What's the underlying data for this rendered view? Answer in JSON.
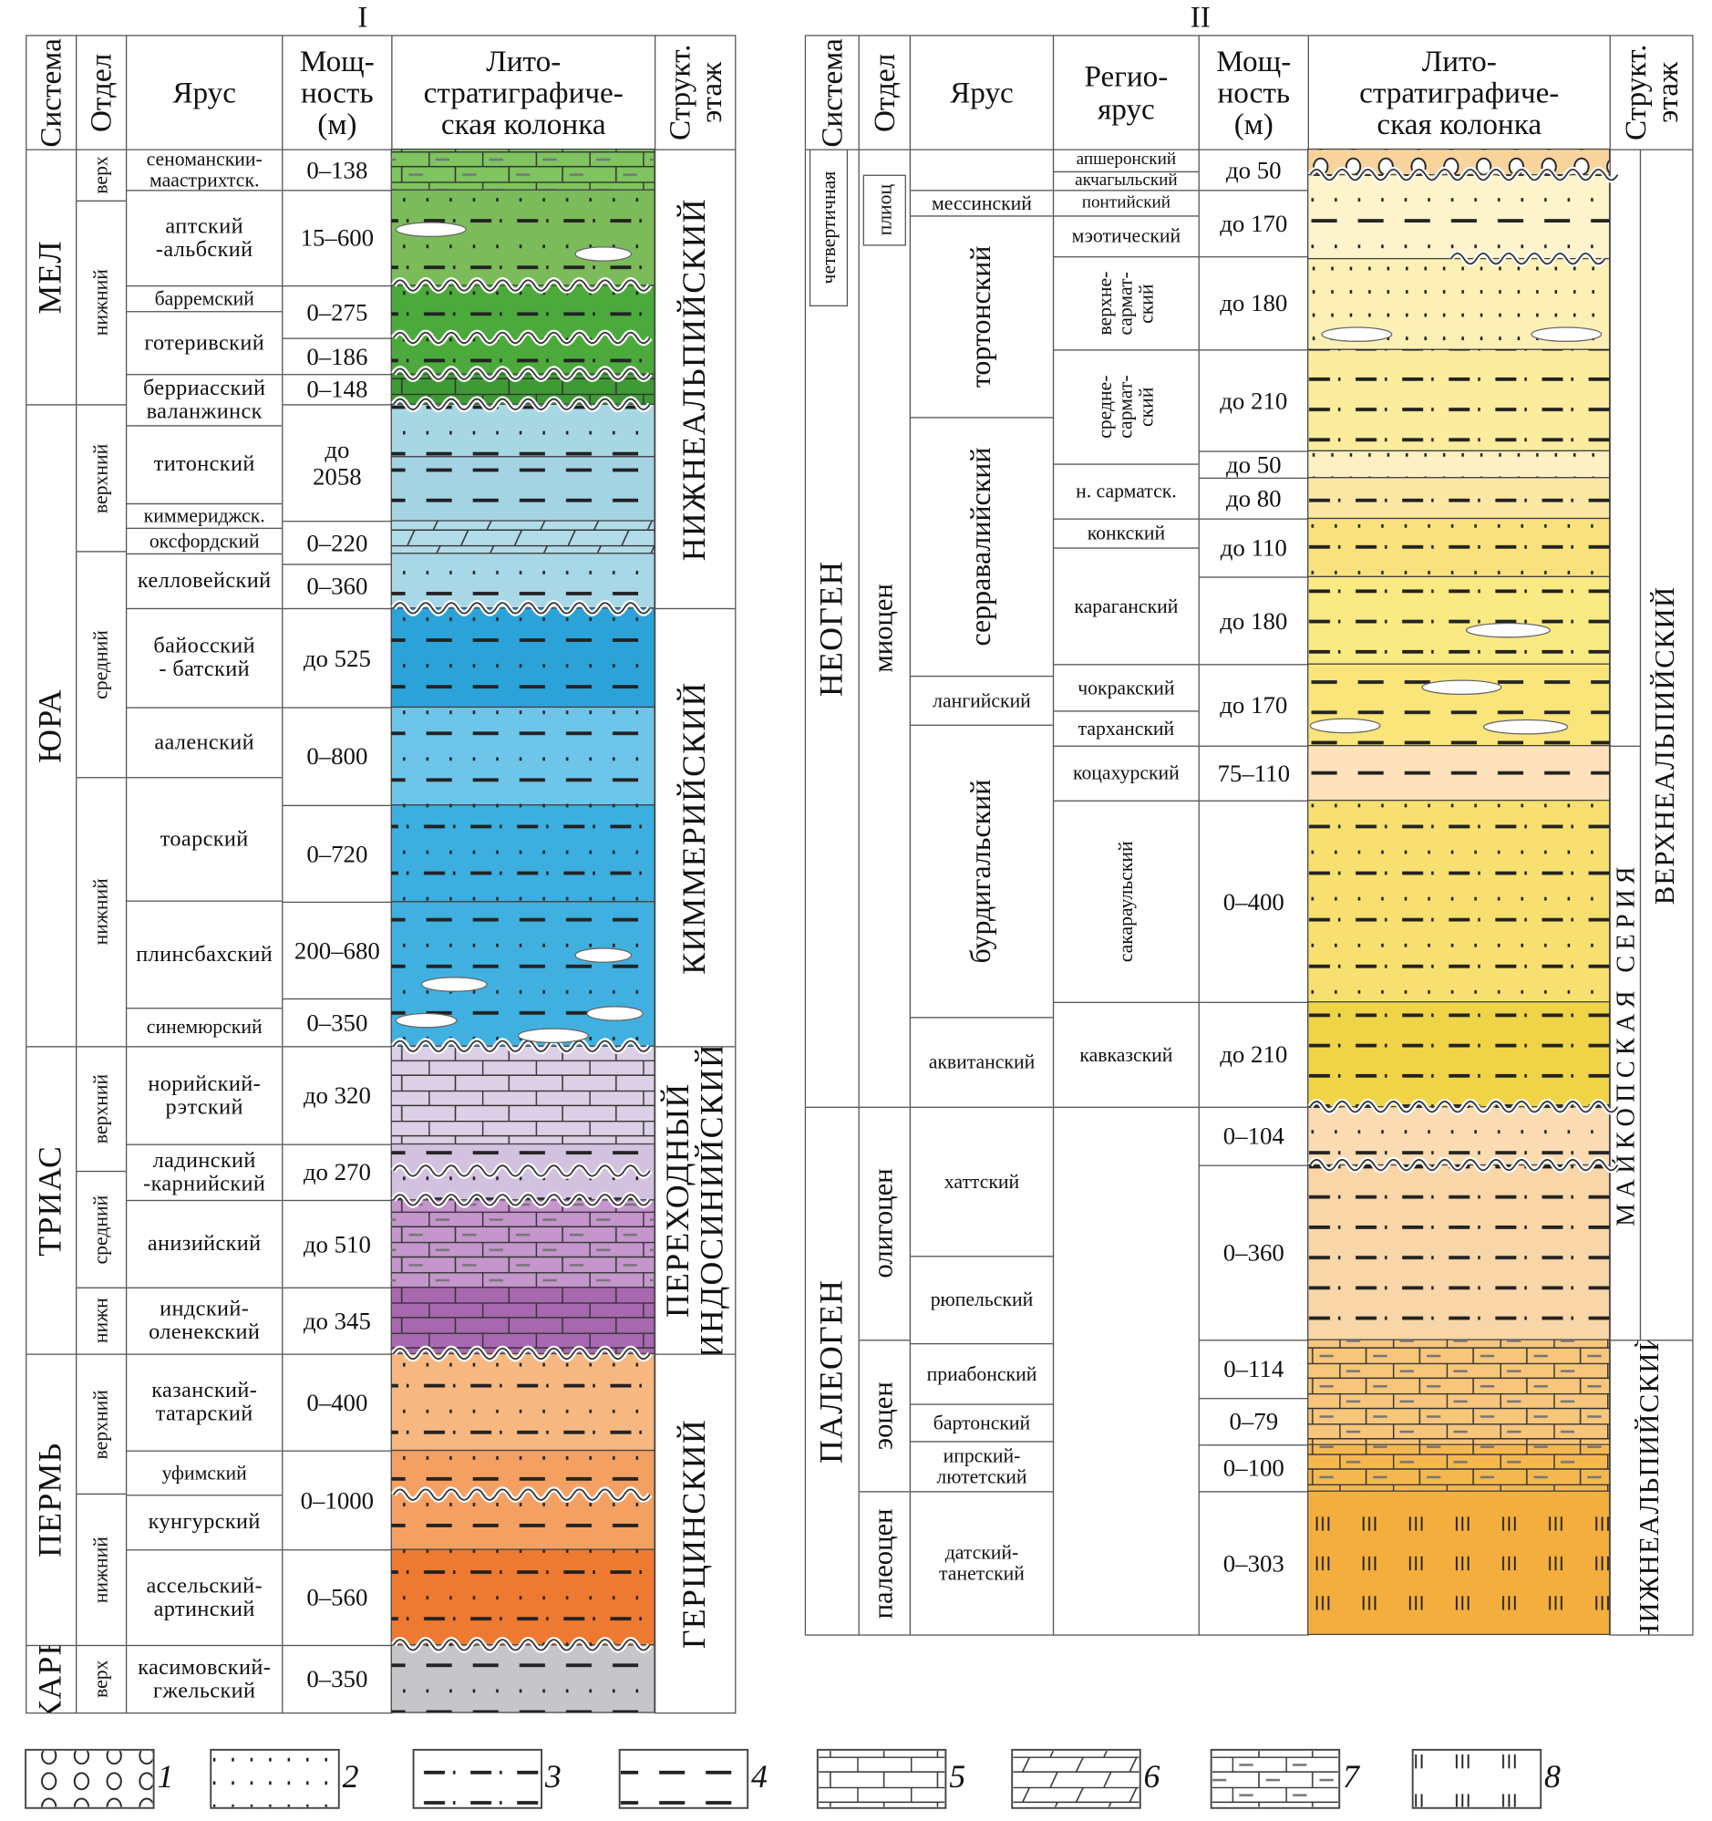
{
  "panels": {
    "left": {
      "label": "I",
      "headers": {
        "system": "Система",
        "series": "Отдел",
        "stage": "Ярус",
        "thickness": "Мощ-\nность\n(м)",
        "column": "Лито-\nстратиграфиче-\nская колонка",
        "structural": "Структ.\nэтаж"
      }
    },
    "right": {
      "label": "II",
      "headers": {
        "system": "Система",
        "series": "Отдел",
        "stage": "Ярус",
        "regional": "Регио-\nярус",
        "thickness": "Мощ-\nность\n(м)",
        "column": "Лито-\nстратиграфиче-\nская колонка",
        "structural": "Структ.\nэтаж"
      }
    }
  },
  "left": {
    "systems": [
      "МЕЛ",
      "ЮРА",
      "ТРИАС",
      "ПЕРМЬ",
      "КАРБ"
    ],
    "series": [
      "верх",
      "нижний",
      "верхний",
      "средний",
      "нижний",
      "верхний",
      "средний",
      "нижн",
      "верхний",
      "нижний",
      "верх"
    ],
    "stages": [
      "сеноманскии-\nмаастрихтск.",
      "аптский\n-альбский",
      "барремский",
      "готеривский",
      "берриасский\nваланжинск",
      "титонский",
      "киммериджск.",
      "оксфордский",
      "келловейский",
      "байосский\n- батский",
      "ааленский",
      "тоарский",
      "плинсбахский",
      "синемюрский",
      "норийский-\nрэтский",
      "ладинский\n-карнийский",
      "анизийский",
      "индский-\nоленекский",
      "казанский-\nтатарский",
      "уфимский",
      "кунгурский",
      "ассельский-\nартинский",
      "касимовский-\nгжельский"
    ],
    "thickness": [
      "0–138",
      "15–600",
      "0–275",
      "0–186",
      "0–148",
      "до\n2058",
      "0–220",
      "0–360",
      "до 525",
      "0–800",
      "0–720",
      "200–680",
      "0–350",
      "до 320",
      "до 270",
      "до 510",
      "до 345",
      "0–400",
      "0–1000",
      "0–560",
      "0–350"
    ],
    "structural": [
      "НИЖНЕАЛЬПИЙСКИЙ",
      "КИММЕРИЙСКИЙ",
      "ПЕРЕХОДНЫЙ\n(ИНДОСИНИЙСКИЙ)",
      "ГЕРЦИНСКИЙ"
    ],
    "lithology": [
      {
        "color": "#7fc45e",
        "pattern": "marl"
      },
      {
        "color": "#7bbb5a",
        "pattern": "dotsdashdot"
      },
      {
        "color": "#4caa3c",
        "pattern": "dotsdashdot"
      },
      {
        "color": "#3f9a36",
        "pattern": "brick"
      },
      {
        "color": "#a8d7e4",
        "pattern": "dotsdash"
      },
      {
        "color": "#a4d4e4",
        "pattern": "dash"
      },
      {
        "color": "#b2dcea",
        "pattern": "oblique"
      },
      {
        "color": "#a8d8e8",
        "pattern": "dotsdash"
      },
      {
        "color": "#2ba3d8",
        "pattern": "dotsdash"
      },
      {
        "color": "#6ec5ea",
        "pattern": "dotsdash"
      },
      {
        "color": "#3caee0",
        "pattern": "dotsdashdot"
      },
      {
        "color": "#40b0e0",
        "pattern": "dotsdash"
      },
      {
        "color": "#dcd0e6",
        "pattern": "brick"
      },
      {
        "color": "#d2c2e0",
        "pattern": "dotsdash"
      },
      {
        "color": "#c496cc",
        "pattern": "marl"
      },
      {
        "color": "#a868b0",
        "pattern": "brick"
      },
      {
        "color": "#f6b880",
        "pattern": "dotsdashdot"
      },
      {
        "color": "#f4a062",
        "pattern": "dotsdash"
      },
      {
        "color": "#ee7a32",
        "pattern": "dotsdashdot"
      },
      {
        "color": "#c6c6ca",
        "pattern": "dotsdash"
      }
    ]
  },
  "right": {
    "systems": [
      "четвертичная",
      "НЕОГЕН",
      "ПАЛЕОГЕН"
    ],
    "series": [
      "плиоц",
      "миоцен",
      "олигоцен",
      "эоцен",
      "палеоцен"
    ],
    "stages": [
      "мессинский",
      "тортонский",
      "серравалийский",
      "лангийский",
      "бурдигальский",
      "аквитанский",
      "хаттский",
      "рюпельский",
      "приабонский",
      "бартонский",
      "ипрский-\nлютетский",
      "датский-\nтанетский"
    ],
    "regional": [
      "апшеронский",
      "акчагыльский",
      "понтийский",
      "мэотический",
      "верхне-\nсармат-\nский",
      "средне-\nсармат-\nский",
      "н. сарматск.",
      "конкский",
      "караганский",
      "чокракский",
      "тарханский",
      "коцахурский",
      "сакараульский",
      "кавказский"
    ],
    "thickness": [
      "до 50",
      "до 170",
      "до 180",
      "до 210",
      "до 50",
      "до 80",
      "до 110",
      "до 180",
      "до 170",
      "75–110",
      "0–400",
      "до 210",
      "0–104",
      "0–360",
      "0–114",
      "0–79",
      "0–100",
      "0–303"
    ],
    "structural": [
      "ВЕРХНЕАЛЬПИЙСКИЙ",
      "МАЙКОПСКАЯ СЕРИЯ",
      "НИЖНЕАЛЬПИЙСКИЙ"
    ],
    "lithology": [
      {
        "color": "#f8d49c",
        "pattern": "circles"
      },
      {
        "color": "#fdf4cc",
        "pattern": "dotsdash"
      },
      {
        "color": "#fcf0b4",
        "pattern": "dots"
      },
      {
        "color": "#fbec9e",
        "pattern": "dashdot"
      },
      {
        "color": "#fdf0c4",
        "pattern": "dots"
      },
      {
        "color": "#fbe8a4",
        "pattern": "dashdot"
      },
      {
        "color": "#f9e27e",
        "pattern": "dotsdashdot"
      },
      {
        "color": "#faea84",
        "pattern": "dashdot"
      },
      {
        "color": "#f9e57a",
        "pattern": "dash"
      },
      {
        "color": "#fde2bc",
        "pattern": "dash"
      },
      {
        "color": "#f8e070",
        "pattern": "dotsdashdot"
      },
      {
        "color": "#f0d448",
        "pattern": "dashdot"
      },
      {
        "color": "#fbdcb2",
        "pattern": "dotsdashdot"
      },
      {
        "color": "#f9d6a8",
        "pattern": "dashdot"
      },
      {
        "color": "#f7c67a",
        "pattern": "marl"
      },
      {
        "color": "#f5b850",
        "pattern": "marl"
      },
      {
        "color": "#f4ae3e",
        "pattern": "vbars"
      }
    ]
  },
  "legend": [
    {
      "number": "1",
      "pattern": "circles"
    },
    {
      "number": "2",
      "pattern": "dots"
    },
    {
      "number": "3",
      "pattern": "dashdot"
    },
    {
      "number": "4",
      "pattern": "dash"
    },
    {
      "number": "5",
      "pattern": "brick"
    },
    {
      "number": "6",
      "pattern": "oblique"
    },
    {
      "number": "7",
      "pattern": "marl"
    },
    {
      "number": "8",
      "pattern": "vbars"
    }
  ]
}
